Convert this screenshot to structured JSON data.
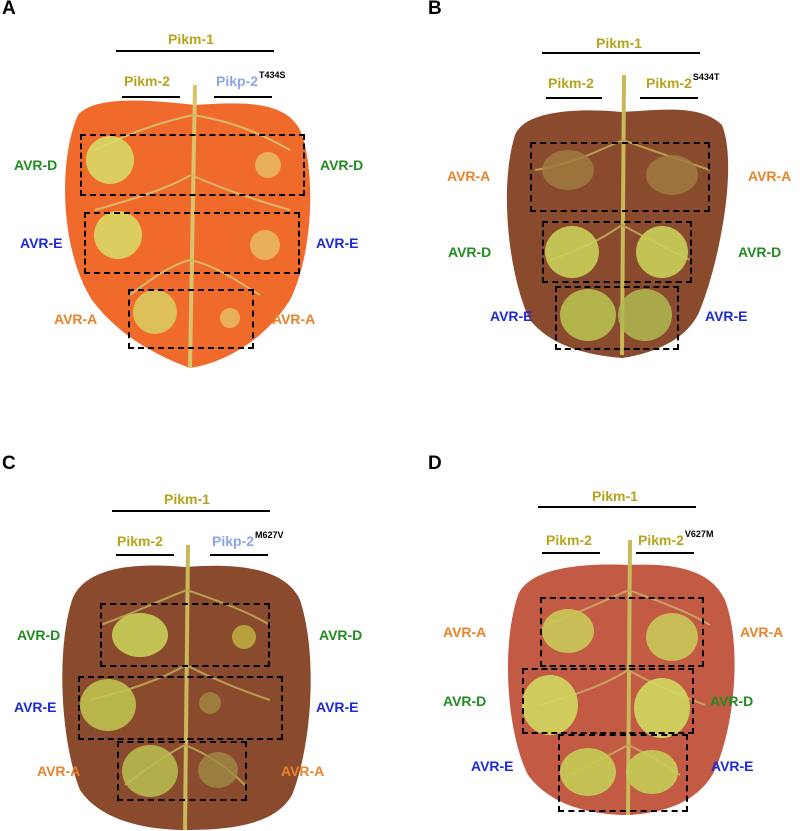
{
  "colors": {
    "pikm": "#b5a41c",
    "pikp": "#8ea4e8",
    "avr_d": "#218a21",
    "avr_e": "#1d2ad8",
    "avr_a": "#e8832a",
    "leaf_orange": "#f06a2c",
    "leaf_dark": "#8a4a2e",
    "leaf_red": "#c35a44",
    "lesion": "#d8de6a"
  },
  "panels": [
    {
      "letter": "A",
      "pikm1": "Pikm-1",
      "left_label": "Pikm-2",
      "right_label": "Pikp-2",
      "right_sup": "T434S",
      "rows": [
        {
          "left": "AVR-D",
          "right": "AVR-D"
        },
        {
          "left": "AVR-E",
          "right": "AVR-E"
        },
        {
          "left": "AVR-A",
          "right": "AVR-A"
        }
      ]
    },
    {
      "letter": "B",
      "pikm1": "Pikm-1",
      "left_label": "Pikm-2",
      "right_label": "Pikm-2",
      "right_sup": "S434T",
      "rows": [
        {
          "left": "AVR-A",
          "right": "AVR-A"
        },
        {
          "left": "AVR-D",
          "right": "AVR-D"
        },
        {
          "left": "AVR-E",
          "right": "AVR-E"
        }
      ]
    },
    {
      "letter": "C",
      "pikm1": "Pikm-1",
      "left_label": "Pikm-2",
      "right_label": "Pikp-2",
      "right_sup": "M627V",
      "rows": [
        {
          "left": "AVR-D",
          "right": "AVR-D"
        },
        {
          "left": "AVR-E",
          "right": "AVR-E"
        },
        {
          "left": "AVR-A",
          "right": "AVR-A"
        }
      ]
    },
    {
      "letter": "D",
      "pikm1": "Pikm-1",
      "left_label": "Pikm-2",
      "right_label": "Pikm-2",
      "right_sup": "V627M",
      "rows": [
        {
          "left": "AVR-A",
          "right": "AVR-A"
        },
        {
          "left": "AVR-D",
          "right": "AVR-D"
        },
        {
          "left": "AVR-E",
          "right": "AVR-E"
        }
      ]
    }
  ]
}
